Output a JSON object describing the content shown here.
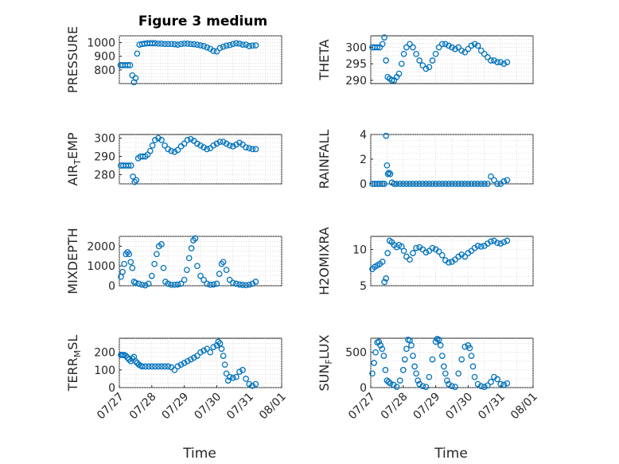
{
  "chart_data": [
    {
      "type": "scatter",
      "title": "Figure 3 medium",
      "ylabel": "PRESSURE",
      "xlabel": "",
      "xlim": [
        0,
        5
      ],
      "xticks": [],
      "ylim": [
        700,
        1050
      ],
      "yticks": [
        800,
        900,
        1000
      ],
      "ytick_labels": [
        "800",
        "900",
        "1000"
      ],
      "series": [
        {
          "x": [
            0.04,
            0.1,
            0.18,
            0.26,
            0.33,
            0.4,
            0.45,
            0.5,
            0.55,
            0.62,
            0.7,
            0.78,
            0.86,
            0.94,
            1.02,
            1.1,
            1.2,
            1.3,
            1.4,
            1.5,
            1.6,
            1.7,
            1.8,
            1.9,
            2.0,
            2.1,
            2.2,
            2.3,
            2.4,
            2.5,
            2.6,
            2.7,
            2.8,
            2.9,
            3.0,
            3.1,
            3.2,
            3.3,
            3.4,
            3.5,
            3.6,
            3.7,
            3.8,
            3.9,
            4.0,
            4.1,
            4.2
          ],
          "y": [
            835,
            835,
            835,
            835,
            835,
            760,
            710,
            740,
            920,
            985,
            990,
            992,
            995,
            995,
            995,
            995,
            993,
            992,
            990,
            990,
            990,
            988,
            985,
            990,
            993,
            992,
            990,
            988,
            985,
            980,
            975,
            965,
            955,
            940,
            935,
            960,
            970,
            978,
            982,
            990,
            995,
            992,
            985,
            985,
            975,
            978,
            980
          ]
        }
      ]
    },
    {
      "type": "scatter",
      "ylabel": "THETA",
      "xlabel": "",
      "xlim": [
        0,
        5
      ],
      "xticks": [],
      "ylim": [
        289,
        303.5
      ],
      "yticks": [
        290,
        295,
        300
      ],
      "ytick_labels": [
        "290",
        "295",
        "300"
      ],
      "series": [
        {
          "x": [
            0.05,
            0.12,
            0.2,
            0.28,
            0.36,
            0.42,
            0.47,
            0.52,
            0.58,
            0.65,
            0.72,
            0.8,
            0.87,
            0.95,
            1.02,
            1.1,
            1.2,
            1.3,
            1.4,
            1.5,
            1.6,
            1.7,
            1.8,
            1.9,
            2.0,
            2.1,
            2.2,
            2.3,
            2.4,
            2.5,
            2.6,
            2.7,
            2.8,
            2.9,
            3.0,
            3.1,
            3.2,
            3.3,
            3.4,
            3.5,
            3.6,
            3.7,
            3.8,
            3.9,
            4.0,
            4.1,
            4.2
          ],
          "y": [
            300,
            300,
            300,
            300,
            301,
            303,
            296,
            291,
            290.5,
            290,
            290,
            291,
            292,
            295,
            298,
            300,
            301,
            300,
            298,
            296,
            294.5,
            293.5,
            294,
            296,
            298,
            300,
            301,
            301,
            300.5,
            300,
            299.5,
            300,
            299,
            298.5,
            299.5,
            300.5,
            301,
            300.5,
            299,
            298,
            297,
            296,
            296,
            295.5,
            295.5,
            295,
            295.5
          ]
        }
      ]
    },
    {
      "type": "scatter",
      "ylabel": "AIR_TEMP",
      "xlabel": "",
      "xlim": [
        0,
        5
      ],
      "xticks": [],
      "ylim": [
        275,
        302
      ],
      "yticks": [
        280,
        290,
        300
      ],
      "ytick_labels": [
        "280",
        "290",
        "300"
      ],
      "series": [
        {
          "x": [
            0.05,
            0.12,
            0.2,
            0.28,
            0.36,
            0.42,
            0.47,
            0.52,
            0.58,
            0.65,
            0.72,
            0.8,
            0.87,
            0.95,
            1.02,
            1.1,
            1.2,
            1.3,
            1.4,
            1.5,
            1.6,
            1.7,
            1.8,
            1.9,
            2.0,
            2.1,
            2.2,
            2.3,
            2.4,
            2.5,
            2.6,
            2.7,
            2.8,
            2.9,
            3.0,
            3.1,
            3.2,
            3.3,
            3.4,
            3.5,
            3.6,
            3.7,
            3.8,
            3.9,
            4.0,
            4.1,
            4.2
          ],
          "y": [
            285,
            285,
            285,
            285,
            285,
            279,
            276,
            277,
            289,
            290,
            290,
            290,
            291,
            293,
            296,
            299,
            300,
            299,
            296,
            294,
            293,
            292.5,
            293.5,
            295.5,
            297,
            299,
            299.5,
            298.5,
            297,
            296,
            295,
            294,
            294.5,
            296,
            297,
            298,
            298,
            297,
            296,
            295.5,
            296.5,
            297.5,
            296.5,
            295,
            294.5,
            294,
            294
          ]
        }
      ]
    },
    {
      "type": "scatter",
      "ylabel": "RAINFALL",
      "xlabel": "",
      "xlim": [
        0,
        5
      ],
      "xticks": [],
      "ylim": [
        0,
        4
      ],
      "yticks": [
        0,
        2,
        4
      ],
      "ytick_labels": [
        "0",
        "2",
        "4"
      ],
      "series": [
        {
          "x": [
            0.05,
            0.12,
            0.2,
            0.28,
            0.36,
            0.42,
            0.47,
            0.5,
            0.53,
            0.56,
            0.6,
            0.65,
            0.72,
            0.8,
            0.9,
            1.0,
            1.1,
            1.2,
            1.3,
            1.4,
            1.5,
            1.6,
            1.7,
            1.8,
            1.9,
            2.0,
            2.1,
            2.2,
            2.3,
            2.4,
            2.5,
            2.6,
            2.7,
            2.8,
            2.9,
            3.0,
            3.1,
            3.2,
            3.3,
            3.4,
            3.5,
            3.6,
            3.7,
            3.8,
            3.9,
            4.0,
            4.1,
            4.2
          ],
          "y": [
            0,
            0,
            0,
            0,
            0,
            0,
            3.9,
            1.5,
            0.8,
            0.9,
            0.8,
            0.1,
            0,
            0,
            0,
            0,
            0,
            0,
            0,
            0,
            0,
            0,
            0,
            0,
            0,
            0,
            0,
            0,
            0,
            0,
            0,
            0,
            0,
            0,
            0,
            0,
            0,
            0,
            0,
            0,
            0,
            0,
            0.6,
            0.3,
            0,
            0,
            0.2,
            0.3
          ]
        }
      ]
    },
    {
      "type": "scatter",
      "ylabel": "MIXDEPTH",
      "xlabel": "",
      "xlim": [
        0,
        5
      ],
      "xticks": [],
      "ylim": [
        0,
        2500
      ],
      "yticks": [
        0,
        1000,
        2000
      ],
      "ytick_labels": [
        "0",
        "1000",
        "2000"
      ],
      "series": [
        {
          "x": [
            0.05,
            0.1,
            0.15,
            0.2,
            0.25,
            0.3,
            0.35,
            0.4,
            0.45,
            0.5,
            0.6,
            0.7,
            0.8,
            0.9,
            1.0,
            1.08,
            1.15,
            1.22,
            1.3,
            1.36,
            1.42,
            1.5,
            1.6,
            1.7,
            1.8,
            1.9,
            2.0,
            2.08,
            2.15,
            2.22,
            2.28,
            2.34,
            2.4,
            2.5,
            2.6,
            2.7,
            2.8,
            2.9,
            3.0,
            3.08,
            3.15,
            3.2,
            3.3,
            3.4,
            3.5,
            3.6,
            3.7,
            3.8,
            3.9,
            4.0,
            4.1,
            4.2
          ],
          "y": [
            450,
            700,
            1100,
            1600,
            1700,
            1600,
            1200,
            900,
            200,
            150,
            100,
            50,
            20,
            100,
            500,
            1100,
            1600,
            2000,
            2100,
            900,
            200,
            100,
            50,
            50,
            60,
            100,
            300,
            800,
            1400,
            1900,
            2300,
            2400,
            1000,
            500,
            300,
            100,
            50,
            60,
            100,
            600,
            1100,
            1200,
            800,
            300,
            150,
            100,
            60,
            40,
            30,
            50,
            100,
            200
          ]
        }
      ]
    },
    {
      "type": "scatter",
      "ylabel": "H2OMIXRA",
      "xlabel": "",
      "xlim": [
        0,
        5
      ],
      "xticks": [],
      "ylim": [
        5,
        11.8
      ],
      "yticks": [
        5,
        10
      ],
      "ytick_labels": [
        "5",
        "10"
      ],
      "series": [
        {
          "x": [
            0.05,
            0.12,
            0.2,
            0.28,
            0.36,
            0.42,
            0.47,
            0.52,
            0.58,
            0.65,
            0.72,
            0.8,
            0.87,
            0.95,
            1.02,
            1.1,
            1.2,
            1.3,
            1.4,
            1.5,
            1.6,
            1.7,
            1.8,
            1.9,
            2.0,
            2.1,
            2.2,
            2.3,
            2.4,
            2.5,
            2.6,
            2.7,
            2.8,
            2.9,
            3.0,
            3.1,
            3.2,
            3.3,
            3.4,
            3.5,
            3.6,
            3.7,
            3.8,
            3.9,
            4.0,
            4.1,
            4.2
          ],
          "y": [
            7.3,
            7.6,
            7.8,
            8.0,
            8.3,
            5.5,
            6.0,
            9.5,
            11.2,
            11.0,
            10.6,
            10.3,
            10.6,
            10.4,
            9.8,
            9.0,
            8.6,
            9.5,
            10.2,
            10.3,
            10.0,
            9.6,
            9.8,
            10.2,
            10.0,
            9.7,
            9.2,
            8.5,
            8.2,
            8.3,
            8.6,
            9.0,
            9.3,
            9.0,
            9.5,
            9.8,
            10.2,
            10.5,
            10.4,
            10.5,
            10.8,
            11.1,
            11.2,
            10.9,
            10.8,
            11.0,
            11.2
          ]
        }
      ]
    },
    {
      "type": "scatter",
      "ylabel": "TERR_MSL",
      "xlabel": "Time",
      "xlim": [
        0,
        5
      ],
      "xticks": [
        0,
        1,
        2,
        3,
        4,
        5
      ],
      "xtick_labels": [
        "07/27",
        "07/28",
        "07/29",
        "07/30",
        "07/31",
        "08/01"
      ],
      "ylim": [
        0,
        280
      ],
      "yticks": [
        0,
        100,
        200
      ],
      "ytick_labels": [
        "0",
        "100",
        "200"
      ],
      "series": [
        {
          "x": [
            0.05,
            0.1,
            0.15,
            0.2,
            0.25,
            0.3,
            0.35,
            0.4,
            0.45,
            0.5,
            0.55,
            0.6,
            0.65,
            0.7,
            0.8,
            0.9,
            1.0,
            1.1,
            1.2,
            1.3,
            1.4,
            1.5,
            1.6,
            1.7,
            1.8,
            1.9,
            2.0,
            2.1,
            2.2,
            2.3,
            2.4,
            2.5,
            2.6,
            2.7,
            2.8,
            2.9,
            3.0,
            3.05,
            3.1,
            3.15,
            3.2,
            3.25,
            3.3,
            3.35,
            3.4,
            3.5,
            3.6,
            3.7,
            3.8,
            3.9,
            4.0,
            4.1,
            4.2
          ],
          "y": [
            185,
            185,
            185,
            180,
            170,
            160,
            150,
            165,
            175,
            150,
            140,
            130,
            125,
            120,
            120,
            120,
            120,
            120,
            120,
            120,
            120,
            120,
            115,
            100,
            120,
            130,
            140,
            150,
            160,
            170,
            180,
            200,
            210,
            220,
            200,
            230,
            240,
            260,
            250,
            220,
            180,
            130,
            80,
            40,
            60,
            55,
            60,
            90,
            100,
            50,
            20,
            10,
            20
          ]
        }
      ]
    },
    {
      "type": "scatter",
      "ylabel": "SUN_FLUX",
      "xlabel": "Time",
      "xlim": [
        0,
        5
      ],
      "xticks": [
        0,
        1,
        2,
        3,
        4,
        5
      ],
      "xtick_labels": [
        "07/27",
        "07/28",
        "07/29",
        "07/30",
        "07/31",
        "08/01"
      ],
      "ylim": [
        0,
        700
      ],
      "yticks": [
        0,
        500
      ],
      "ytick_labels": [
        "0",
        "500"
      ],
      "series": [
        {
          "x": [
            0.05,
            0.1,
            0.15,
            0.2,
            0.25,
            0.3,
            0.35,
            0.4,
            0.45,
            0.5,
            0.55,
            0.6,
            0.7,
            0.8,
            0.9,
            1.0,
            1.05,
            1.1,
            1.15,
            1.2,
            1.25,
            1.3,
            1.35,
            1.4,
            1.45,
            1.5,
            1.6,
            1.7,
            1.8,
            1.9,
            2.0,
            2.05,
            2.1,
            2.15,
            2.2,
            2.25,
            2.3,
            2.35,
            2.4,
            2.5,
            2.6,
            2.7,
            2.8,
            2.9,
            3.0,
            3.05,
            3.1,
            3.15,
            3.2,
            3.3,
            3.4,
            3.5,
            3.6,
            3.7,
            3.8,
            3.9,
            4.0,
            4.1,
            4.2
          ],
          "y": [
            200,
            350,
            500,
            640,
            650,
            600,
            550,
            450,
            250,
            100,
            80,
            60,
            40,
            10,
            100,
            250,
            400,
            550,
            680,
            670,
            600,
            450,
            300,
            200,
            100,
            50,
            20,
            10,
            150,
            400,
            650,
            690,
            680,
            600,
            450,
            300,
            200,
            100,
            50,
            20,
            10,
            200,
            400,
            580,
            600,
            560,
            450,
            300,
            150,
            50,
            20,
            10,
            30,
            80,
            150,
            120,
            50,
            40,
            60
          ]
        }
      ]
    }
  ]
}
